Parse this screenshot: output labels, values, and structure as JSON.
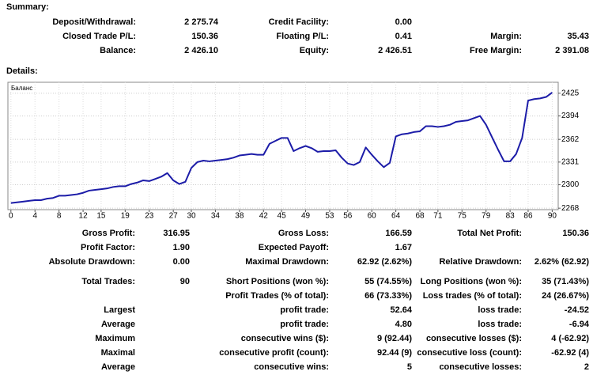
{
  "summary": {
    "title": "Summary:",
    "rows": [
      {
        "a": [
          "Deposit/Withdrawal:",
          "2 275.74"
        ],
        "b": [
          "Credit Facility:",
          "0.00"
        ]
      },
      {
        "a": [
          "Closed Trade P/L:",
          "150.36"
        ],
        "b": [
          "Floating P/L:",
          "0.41"
        ],
        "c": [
          "Margin:",
          "35.43"
        ]
      },
      {
        "a": [
          "Balance:",
          "2 426.10"
        ],
        "b": [
          "Equity:",
          "2 426.51"
        ],
        "c": [
          "Free Margin:",
          "2 391.08"
        ]
      }
    ]
  },
  "details": {
    "title": "Details:",
    "rows": [
      {
        "a": [
          "Gross Profit:",
          "316.95"
        ],
        "b": [
          "Gross Loss:",
          "166.59"
        ],
        "c": [
          "Total Net Profit:",
          "150.36"
        ]
      },
      {
        "a": [
          "Profit Factor:",
          "1.90"
        ],
        "b": [
          "Expected Payoff:",
          "1.67"
        ]
      },
      {
        "a": [
          "Absolute Drawdown:",
          "0.00"
        ],
        "b": [
          "Maximal Drawdown:",
          "62.92 (2.62%)"
        ],
        "c": [
          "Relative Drawdown:",
          "2.62% (62.92)"
        ]
      },
      {
        "a": [
          "Total Trades:",
          "90"
        ],
        "b": [
          "Short Positions (won %):",
          "55 (74.55%)"
        ],
        "c": [
          "Long Positions (won %):",
          "35 (71.43%)"
        ]
      },
      {
        "b": [
          "Profit Trades (% of total):",
          "66 (73.33%)"
        ],
        "c": [
          "Loss trades (% of total):",
          "24 (26.67%)"
        ]
      },
      {
        "a": [
          "Largest"
        ],
        "b": [
          "profit trade:",
          "52.64"
        ],
        "c": [
          "loss trade:",
          "-24.52"
        ]
      },
      {
        "a": [
          "Average"
        ],
        "b": [
          "profit trade:",
          "4.80"
        ],
        "c": [
          "loss trade:",
          "-6.94"
        ]
      },
      {
        "a": [
          "Maximum"
        ],
        "b": [
          "consecutive wins ($):",
          "9 (92.44)"
        ],
        "c": [
          "consecutive losses ($):",
          "4 (-62.92)"
        ]
      },
      {
        "a": [
          "Maximal"
        ],
        "b": [
          "consecutive profit (count):",
          "92.44 (9)"
        ],
        "c": [
          "consecutive loss (count):",
          "-62.92 (4)"
        ]
      },
      {
        "a": [
          "Average"
        ],
        "b": [
          "consecutive wins:",
          "5"
        ],
        "c": [
          "consecutive losses:",
          "2"
        ]
      }
    ]
  },
  "chart_data": {
    "type": "line",
    "x": [
      0,
      1,
      2,
      3,
      4,
      5,
      6,
      7,
      8,
      9,
      10,
      11,
      12,
      13,
      14,
      15,
      16,
      17,
      18,
      19,
      20,
      21,
      22,
      23,
      24,
      25,
      26,
      27,
      28,
      29,
      30,
      31,
      32,
      33,
      34,
      35,
      36,
      37,
      38,
      39,
      40,
      41,
      42,
      43,
      44,
      45,
      46,
      47,
      48,
      49,
      50,
      51,
      52,
      53,
      54,
      55,
      56,
      57,
      58,
      59,
      60,
      61,
      62,
      63,
      64,
      65,
      66,
      67,
      68,
      69,
      70,
      71,
      72,
      73,
      74,
      75,
      76,
      77,
      78,
      79,
      80,
      81,
      82,
      83,
      84,
      85,
      86,
      87,
      88,
      89,
      90
    ],
    "series": [
      {
        "name": "Баланс",
        "color": "#1c1ca8",
        "values": [
          2275,
          2276,
          2277,
          2278,
          2279,
          2279,
          2281,
          2282,
          2285,
          2285,
          2286,
          2287,
          2289,
          2292,
          2293,
          2294,
          2295,
          2297,
          2298,
          2298,
          2301,
          2303,
          2306,
          2305,
          2308,
          2311,
          2316,
          2306,
          2301,
          2304,
          2323,
          2331,
          2333,
          2332,
          2333,
          2334,
          2335,
          2337,
          2340,
          2341,
          2342,
          2341,
          2341,
          2356,
          2360,
          2364,
          2364,
          2346,
          2350,
          2353,
          2350,
          2345,
          2346,
          2346,
          2347,
          2337,
          2329,
          2327,
          2331,
          2351,
          2341,
          2332,
          2324,
          2330,
          2366,
          2369,
          2370,
          2372,
          2373,
          2380,
          2380,
          2379,
          2380,
          2382,
          2386,
          2387,
          2388,
          2391,
          2394,
          2382,
          2365,
          2348,
          2332,
          2332,
          2342,
          2364,
          2415,
          2417,
          2418,
          2420,
          2426
        ]
      }
    ],
    "xlim": [
      -0.5,
      91
    ],
    "xticks": [
      0,
      4,
      8,
      12,
      15,
      19,
      23,
      27,
      30,
      34,
      38,
      42,
      45,
      49,
      53,
      56,
      60,
      64,
      68,
      71,
      75,
      79,
      83,
      86,
      90
    ],
    "ylim": [
      2266,
      2440
    ],
    "yticks": [
      2268,
      2300,
      2331,
      2362,
      2394,
      2425
    ],
    "grid": true
  }
}
